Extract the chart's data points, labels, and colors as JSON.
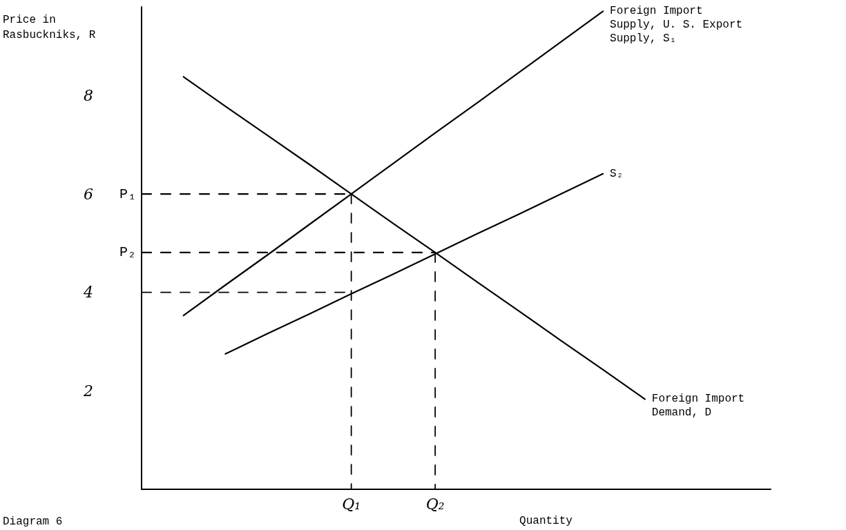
{
  "chart_data": {
    "type": "line",
    "ylabel": "Price in Rasbuckniks, R",
    "xlabel": "Quantity",
    "categories": [
      null,
      null,
      null,
      null,
      null,
      "Q₁",
      null,
      "Q₂",
      null,
      null,
      null,
      null,
      null,
      null,
      null,
      null
    ],
    "ylim": [
      0,
      9.8
    ],
    "yticks": [
      2,
      4,
      6,
      8
    ],
    "grid": false,
    "legend": false,
    "marker": "none",
    "series": [
      {
        "name": "Foreign Import Supply, U. S. Export Supply, S₁",
        "color": "#000000",
        "values": [
          null,
          3.53,
          4.15,
          4.76,
          5.38,
          6.0,
          6.62,
          7.24,
          7.85,
          8.47,
          9.09,
          9.71,
          null,
          null,
          null,
          null
        ],
        "line_style": "solid"
      },
      {
        "name": "S₂",
        "color": "#000000",
        "values": [
          null,
          null,
          2.75,
          3.16,
          3.56,
          3.97,
          4.37,
          4.78,
          5.19,
          5.59,
          6.0,
          6.41,
          null,
          null,
          null,
          null
        ],
        "line_style": "solid"
      },
      {
        "name": "Foreign Import Demand, D",
        "color": "#000000",
        "values": [
          null,
          8.38,
          7.78,
          7.19,
          6.6,
          6.0,
          5.4,
          4.81,
          4.21,
          3.62,
          3.02,
          2.43,
          1.83,
          null,
          null,
          null
        ],
        "line_style": "solid"
      },
      {
        "name": "P₁",
        "color": "#000000",
        "values": [
          6,
          6,
          6,
          6,
          6,
          6,
          null,
          null,
          null,
          null,
          null,
          null,
          null,
          null,
          null,
          null
        ],
        "line_style": "dashed"
      },
      {
        "color": "#000000",
        "x": [
          "Q₁",
          "Q₁"
        ],
        "values": [
          6,
          0
        ],
        "line_style": "dashed"
      },
      {
        "name": "P₂",
        "color": "#000000",
        "values": [
          4.81,
          4.81,
          4.81,
          4.81,
          4.81,
          4.81,
          4.81,
          4.81,
          null,
          null,
          null,
          null,
          null,
          null,
          null,
          null
        ],
        "line_style": "dashed"
      },
      {
        "color": "#000000",
        "x": [
          "Q₂",
          "Q₂"
        ],
        "values": [
          4.81,
          0
        ],
        "line_style": "dashed"
      },
      {
        "color": "#000000",
        "values": [
          4,
          4,
          4,
          4,
          4,
          4,
          null,
          null,
          null,
          null,
          null,
          null,
          null,
          null,
          null,
          null
        ],
        "line_style": "dashed"
      }
    ],
    "annotations": [
      "Diagram 6"
    ]
  }
}
